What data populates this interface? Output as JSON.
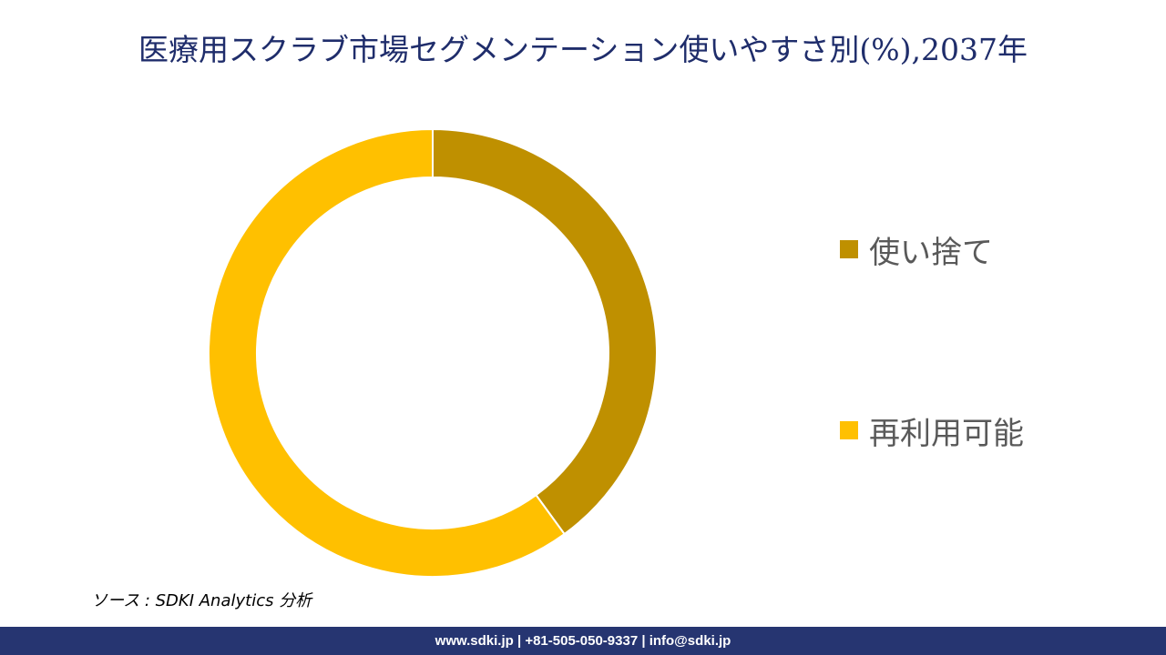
{
  "chart_data": {
    "type": "pie",
    "title": "医療用スクラブ市場セグメンテーション使いやすさ別(%),2037年",
    "series": [
      {
        "name": "使い捨て",
        "value": 40,
        "color": "#bf9000"
      },
      {
        "name": "再利用可能",
        "value": 60,
        "color": "#ffc000"
      }
    ],
    "legend_position": "right"
  },
  "source": "ソース : SDKI Analytics 分析",
  "footer": "www.sdki.jp | +81-505-050-9337 | info@sdki.jp"
}
